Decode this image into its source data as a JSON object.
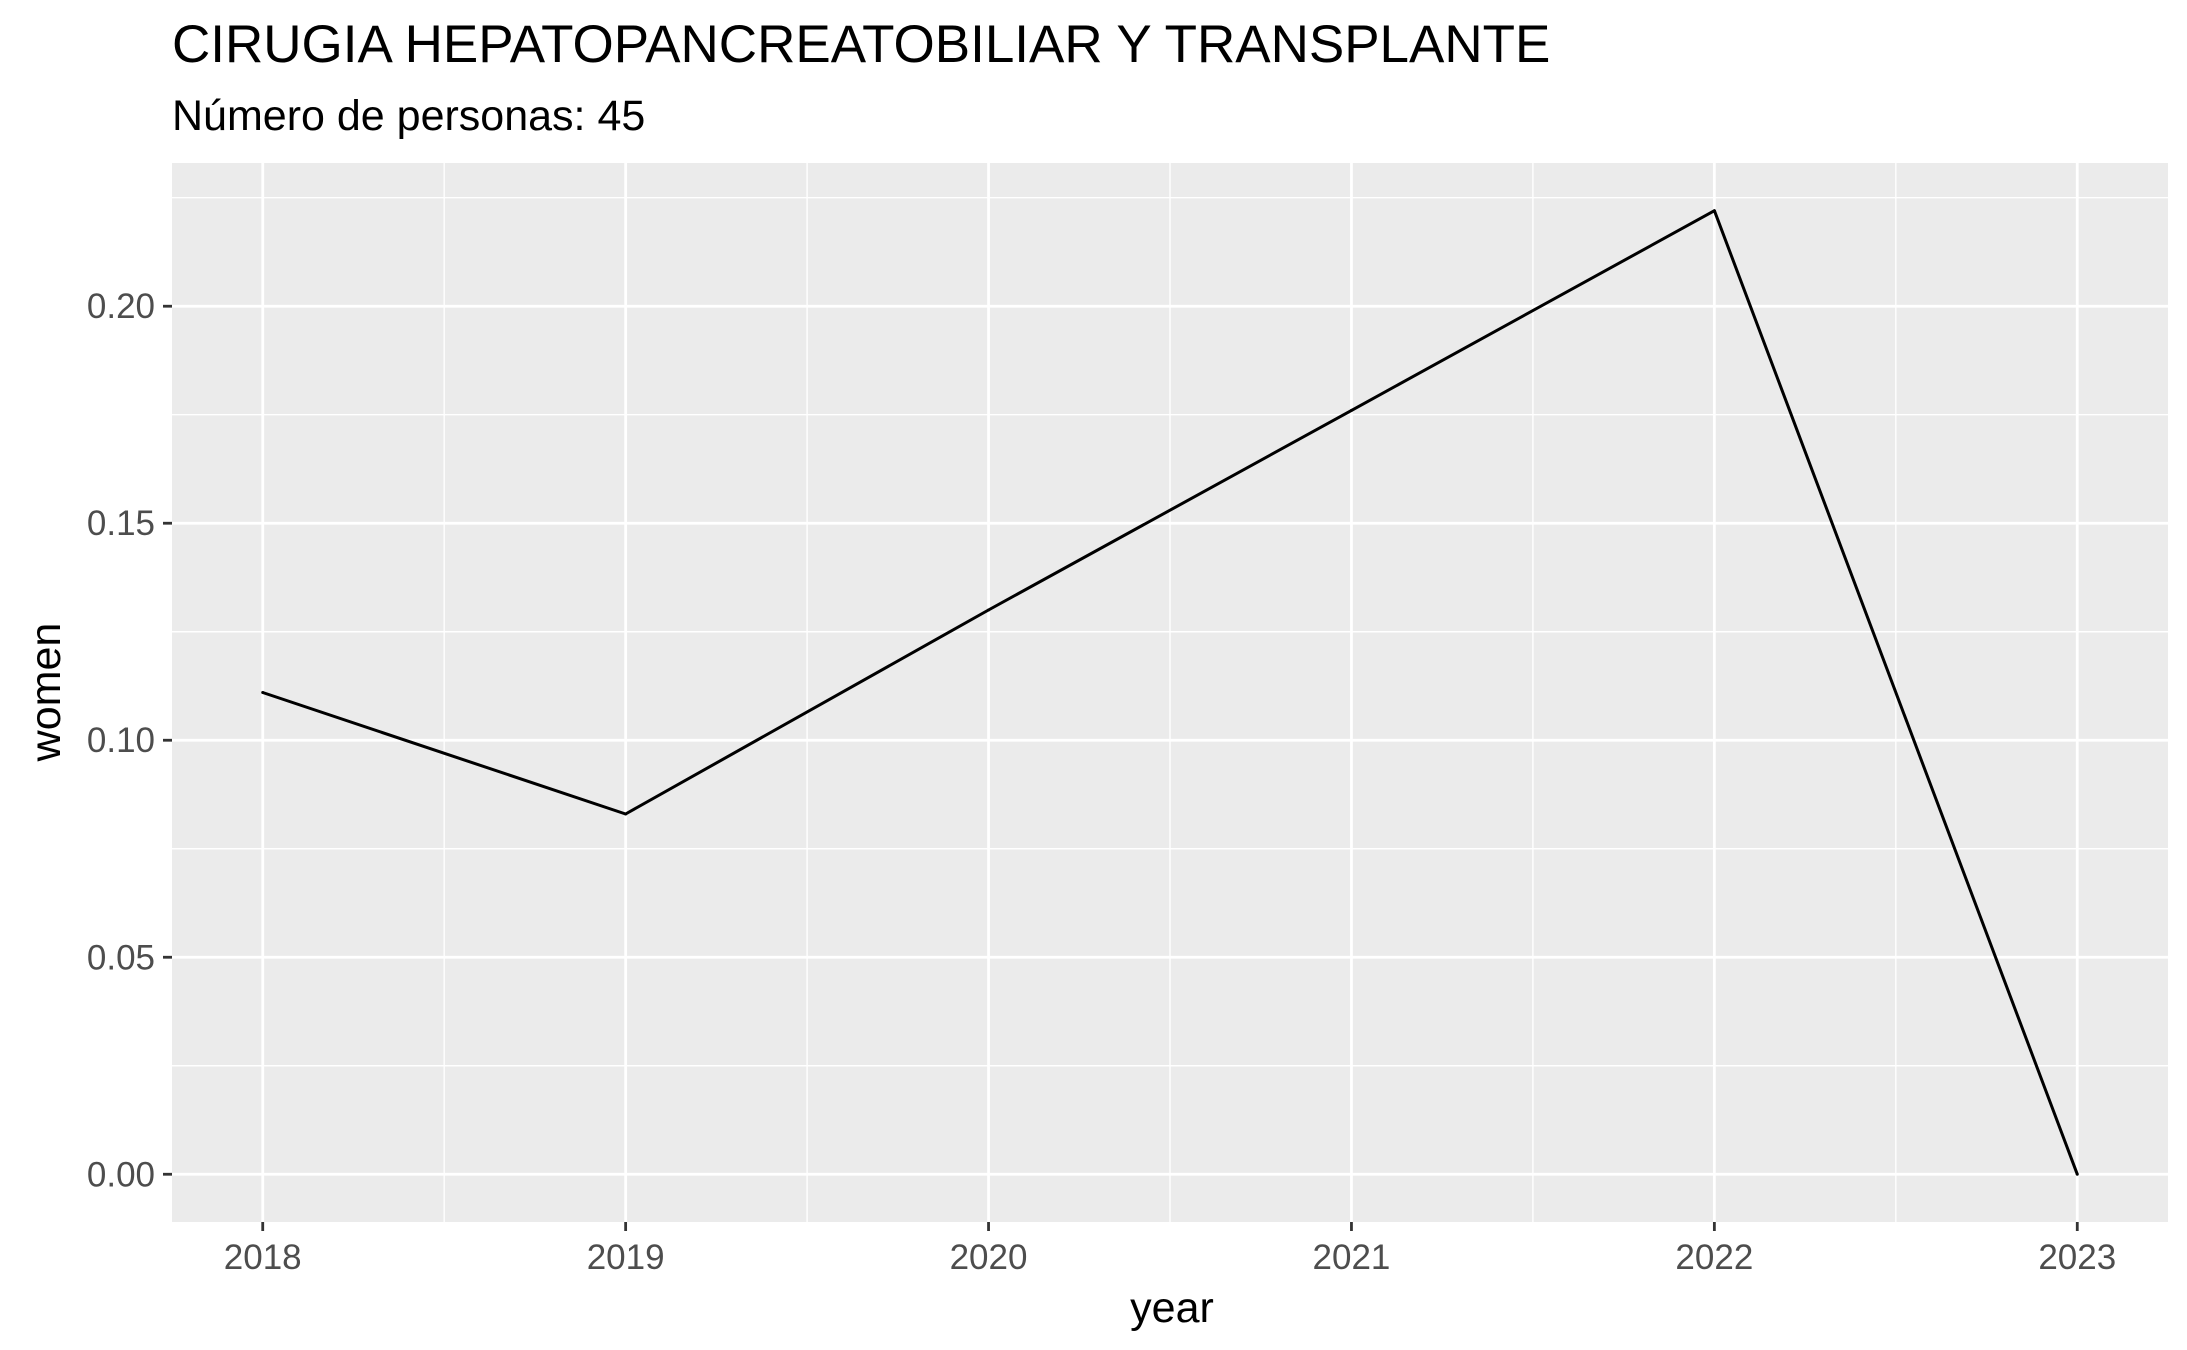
{
  "chart_data": {
    "type": "line",
    "title": "CIRUGIA HEPATOPANCREATOBILIAR Y TRANSPLANTE",
    "subtitle": "Número de personas: 45",
    "xlabel": "year",
    "ylabel": "women",
    "x": [
      2018,
      2019,
      2020,
      2021,
      2022,
      2023
    ],
    "x_tick_labels": [
      "2018",
      "2019",
      "2020",
      "2021",
      "2022",
      "2023"
    ],
    "y_ticks": [
      0.0,
      0.05,
      0.1,
      0.15,
      0.2
    ],
    "y_tick_labels": [
      "0.00",
      "0.05",
      "0.10",
      "0.15",
      "0.20"
    ],
    "series": [
      {
        "values": [
          0.111,
          0.083,
          0.13,
          0.176,
          0.222,
          0.0
        ]
      }
    ],
    "xlim": [
      2017.75,
      2023.25
    ],
    "ylim": [
      -0.011,
      0.233
    ],
    "grid": true,
    "colors": {
      "panel": "#ebebeb",
      "grid": "#ffffff",
      "line": "#000000",
      "tick_text": "#4d4d4d"
    }
  }
}
